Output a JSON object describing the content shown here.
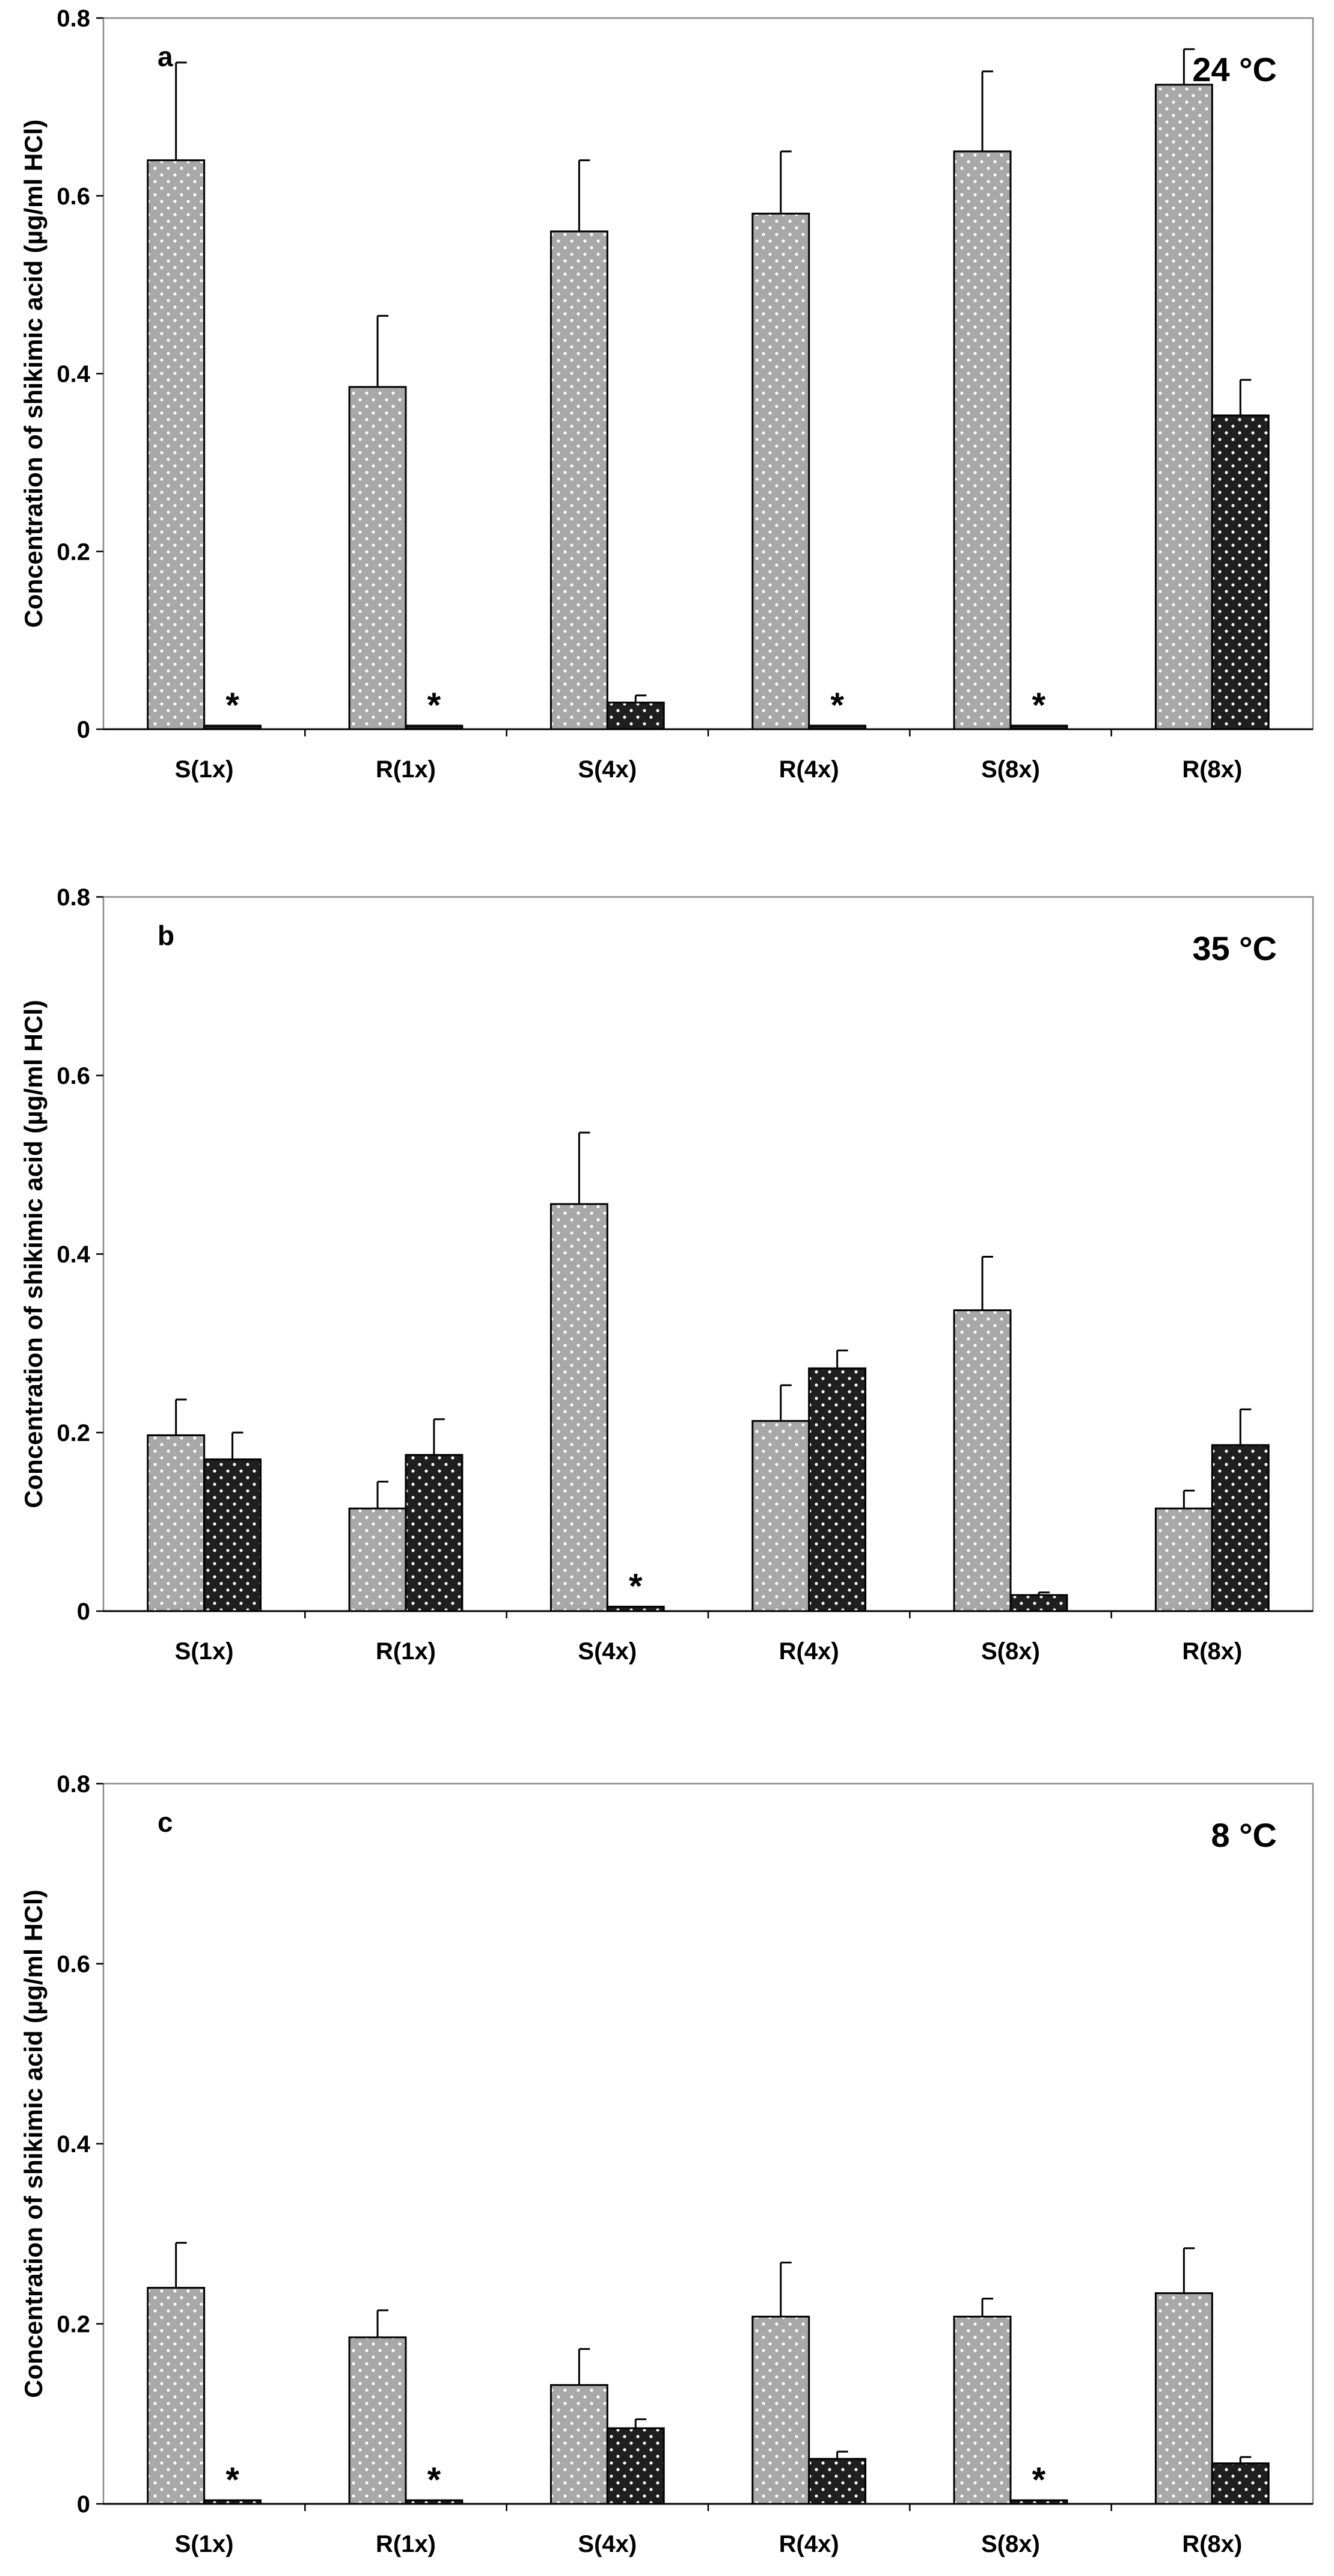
{
  "colors": {
    "light_fill": "#a8a8a8",
    "dark_fill": "#1f1f1f",
    "stroke": "#000000",
    "frame": "#8a8a8a"
  },
  "chart_data": [
    {
      "type": "bar",
      "panel_label": "a",
      "temperature_label": "24 °C",
      "ylabel": "Concentration of shikimic acid (µg/ml HCl)",
      "ylim": [
        0,
        0.8
      ],
      "yticks": [
        "0",
        "0.2",
        "0.4",
        "0.6",
        "0.8"
      ],
      "ytick_values": [
        0,
        0.2,
        0.4,
        0.6,
        0.8
      ],
      "categories": [
        "S(1x)",
        "R(1x)",
        "S(4x)",
        "R(4x)",
        "S(8x)",
        "R(8x)"
      ],
      "series": [
        {
          "name": "light",
          "values": [
            0.64,
            0.385,
            0.56,
            0.58,
            0.65,
            0.725
          ],
          "errors": [
            0.11,
            0.08,
            0.08,
            0.07,
            0.09,
            0.04
          ],
          "significant": [
            false,
            false,
            false,
            false,
            false,
            false
          ]
        },
        {
          "name": "dark",
          "values": [
            0.004,
            0.004,
            0.03,
            0.004,
            0.004,
            0.353
          ],
          "errors": [
            0,
            0,
            0.008,
            0,
            0,
            0.04
          ],
          "significant": [
            true,
            true,
            false,
            true,
            true,
            false
          ]
        }
      ],
      "significance_marker": "*"
    },
    {
      "type": "bar",
      "panel_label": "b",
      "temperature_label": "35 °C",
      "ylabel": "Concentration of shikimic acid (µg/ml HCl)",
      "ylim": [
        0,
        0.8
      ],
      "yticks": [
        "0",
        "0.2",
        "0.4",
        "0.6",
        "0.8"
      ],
      "ytick_values": [
        0,
        0.2,
        0.4,
        0.6,
        0.8
      ],
      "categories": [
        "S(1x)",
        "R(1x)",
        "S(4x)",
        "R(4x)",
        "S(8x)",
        "R(8x)"
      ],
      "series": [
        {
          "name": "light",
          "values": [
            0.197,
            0.115,
            0.456,
            0.213,
            0.337,
            0.115
          ],
          "errors": [
            0.04,
            0.03,
            0.08,
            0.04,
            0.06,
            0.02
          ],
          "significant": [
            false,
            false,
            false,
            false,
            false,
            false
          ]
        },
        {
          "name": "dark",
          "values": [
            0.17,
            0.175,
            0.005,
            0.272,
            0.018,
            0.186
          ],
          "errors": [
            0.03,
            0.04,
            0,
            0.02,
            0.003,
            0.04
          ],
          "significant": [
            false,
            false,
            true,
            false,
            false,
            false
          ]
        }
      ],
      "significance_marker": "*"
    },
    {
      "type": "bar",
      "panel_label": "c",
      "temperature_label": "8 °C",
      "ylabel": "Concentration of shikimic acid (µg/ml HCl)",
      "ylim": [
        0,
        0.8
      ],
      "yticks": [
        "0",
        "0.2",
        "0.4",
        "0.6",
        "0.8"
      ],
      "ytick_values": [
        0,
        0.2,
        0.4,
        0.6,
        0.8
      ],
      "categories": [
        "S(1x)",
        "R(1x)",
        "S(4x)",
        "R(4x)",
        "S(8x)",
        "R(8x)"
      ],
      "series": [
        {
          "name": "light",
          "values": [
            0.24,
            0.185,
            0.132,
            0.208,
            0.208,
            0.234
          ],
          "errors": [
            0.05,
            0.03,
            0.04,
            0.06,
            0.02,
            0.05
          ],
          "significant": [
            false,
            false,
            false,
            false,
            false,
            false
          ]
        },
        {
          "name": "dark",
          "values": [
            0.004,
            0.004,
            0.084,
            0.05,
            0.004,
            0.045
          ],
          "errors": [
            0,
            0,
            0.01,
            0.008,
            0,
            0.007
          ],
          "significant": [
            true,
            true,
            false,
            false,
            true,
            false
          ]
        }
      ],
      "significance_marker": "*"
    }
  ]
}
